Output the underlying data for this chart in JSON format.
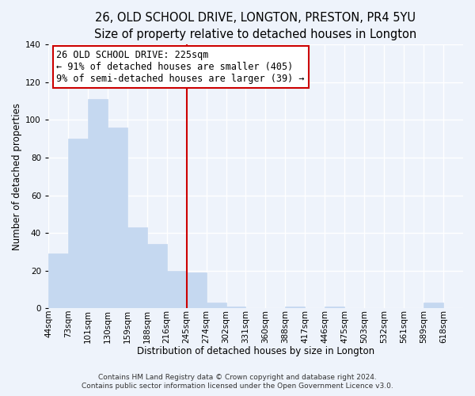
{
  "title_line1": "26, OLD SCHOOL DRIVE, LONGTON, PRESTON, PR4 5YU",
  "title_line2": "Size of property relative to detached houses in Longton",
  "xlabel": "Distribution of detached houses by size in Longton",
  "ylabel": "Number of detached properties",
  "bar_labels": [
    "44sqm",
    "73sqm",
    "101sqm",
    "130sqm",
    "159sqm",
    "188sqm",
    "216sqm",
    "245sqm",
    "274sqm",
    "302sqm",
    "331sqm",
    "360sqm",
    "388sqm",
    "417sqm",
    "446sqm",
    "475sqm",
    "503sqm",
    "532sqm",
    "561sqm",
    "589sqm",
    "618sqm"
  ],
  "bar_values": [
    29,
    90,
    111,
    96,
    43,
    34,
    20,
    19,
    3,
    1,
    0,
    0,
    1,
    0,
    1,
    0,
    0,
    0,
    0,
    3,
    0
  ],
  "bar_color": "#c5d8f0",
  "bar_edge_color": "#c5d8f0",
  "highlight_line_color": "#cc0000",
  "highlight_line_index": 7,
  "ylim": [
    0,
    140
  ],
  "yticks": [
    0,
    20,
    40,
    60,
    80,
    100,
    120,
    140
  ],
  "annotation_text_line1": "26 OLD SCHOOL DRIVE: 225sqm",
  "annotation_text_line2": "← 91% of detached houses are smaller (405)",
  "annotation_text_line3": "9% of semi-detached houses are larger (39) →",
  "footer_line1": "Contains HM Land Registry data © Crown copyright and database right 2024.",
  "footer_line2": "Contains public sector information licensed under the Open Government Licence v3.0.",
  "background_color": "#eef3fb",
  "grid_color": "#ffffff",
  "title_fontsize": 10.5,
  "subtitle_fontsize": 9.5,
  "axis_label_fontsize": 8.5,
  "tick_fontsize": 7.5,
  "annotation_fontsize": 8.5,
  "footer_fontsize": 6.5
}
